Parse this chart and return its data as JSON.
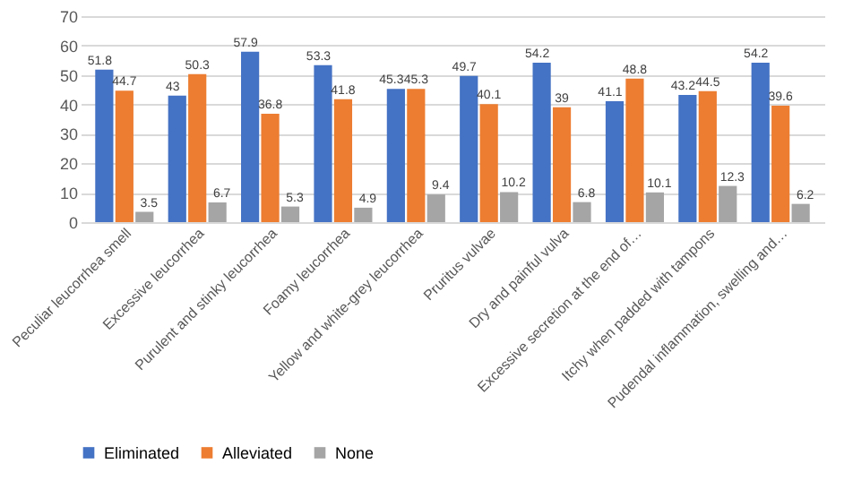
{
  "chart_data": {
    "type": "bar",
    "categories": [
      "Peculiar leucorrhea smell",
      "Excessive leucorrhea",
      "Purulent and stinky leucorrhea",
      "Foamy leucorrhea",
      "Yellow and white-grey leucorrhea",
      "Pruritus vulvae",
      "Dry and painful vulva",
      "Excessive secretion at the end of…",
      "Itchy when padded with tampons",
      "Pudendal inflammation, swelling and…"
    ],
    "series": [
      {
        "name": "Eliminated",
        "color": "#4472c4",
        "values": [
          51.8,
          43,
          57.9,
          53.3,
          45.3,
          49.7,
          54.2,
          41.1,
          43.2,
          54.2
        ]
      },
      {
        "name": "Alleviated",
        "color": "#ed7d31",
        "values": [
          44.7,
          50.3,
          36.8,
          41.8,
          45.3,
          40.1,
          39,
          48.8,
          44.5,
          39.6
        ]
      },
      {
        "name": "None",
        "color": "#a5a5a5",
        "values": [
          3.5,
          6.7,
          5.3,
          4.9,
          9.4,
          10.2,
          6.8,
          10.1,
          12.3,
          6.2
        ]
      }
    ],
    "ylim": [
      0,
      70
    ],
    "yticks": [
      0,
      10,
      20,
      30,
      40,
      50,
      60,
      70
    ],
    "grid": "y",
    "legend": "bottom",
    "data_labels": true
  }
}
